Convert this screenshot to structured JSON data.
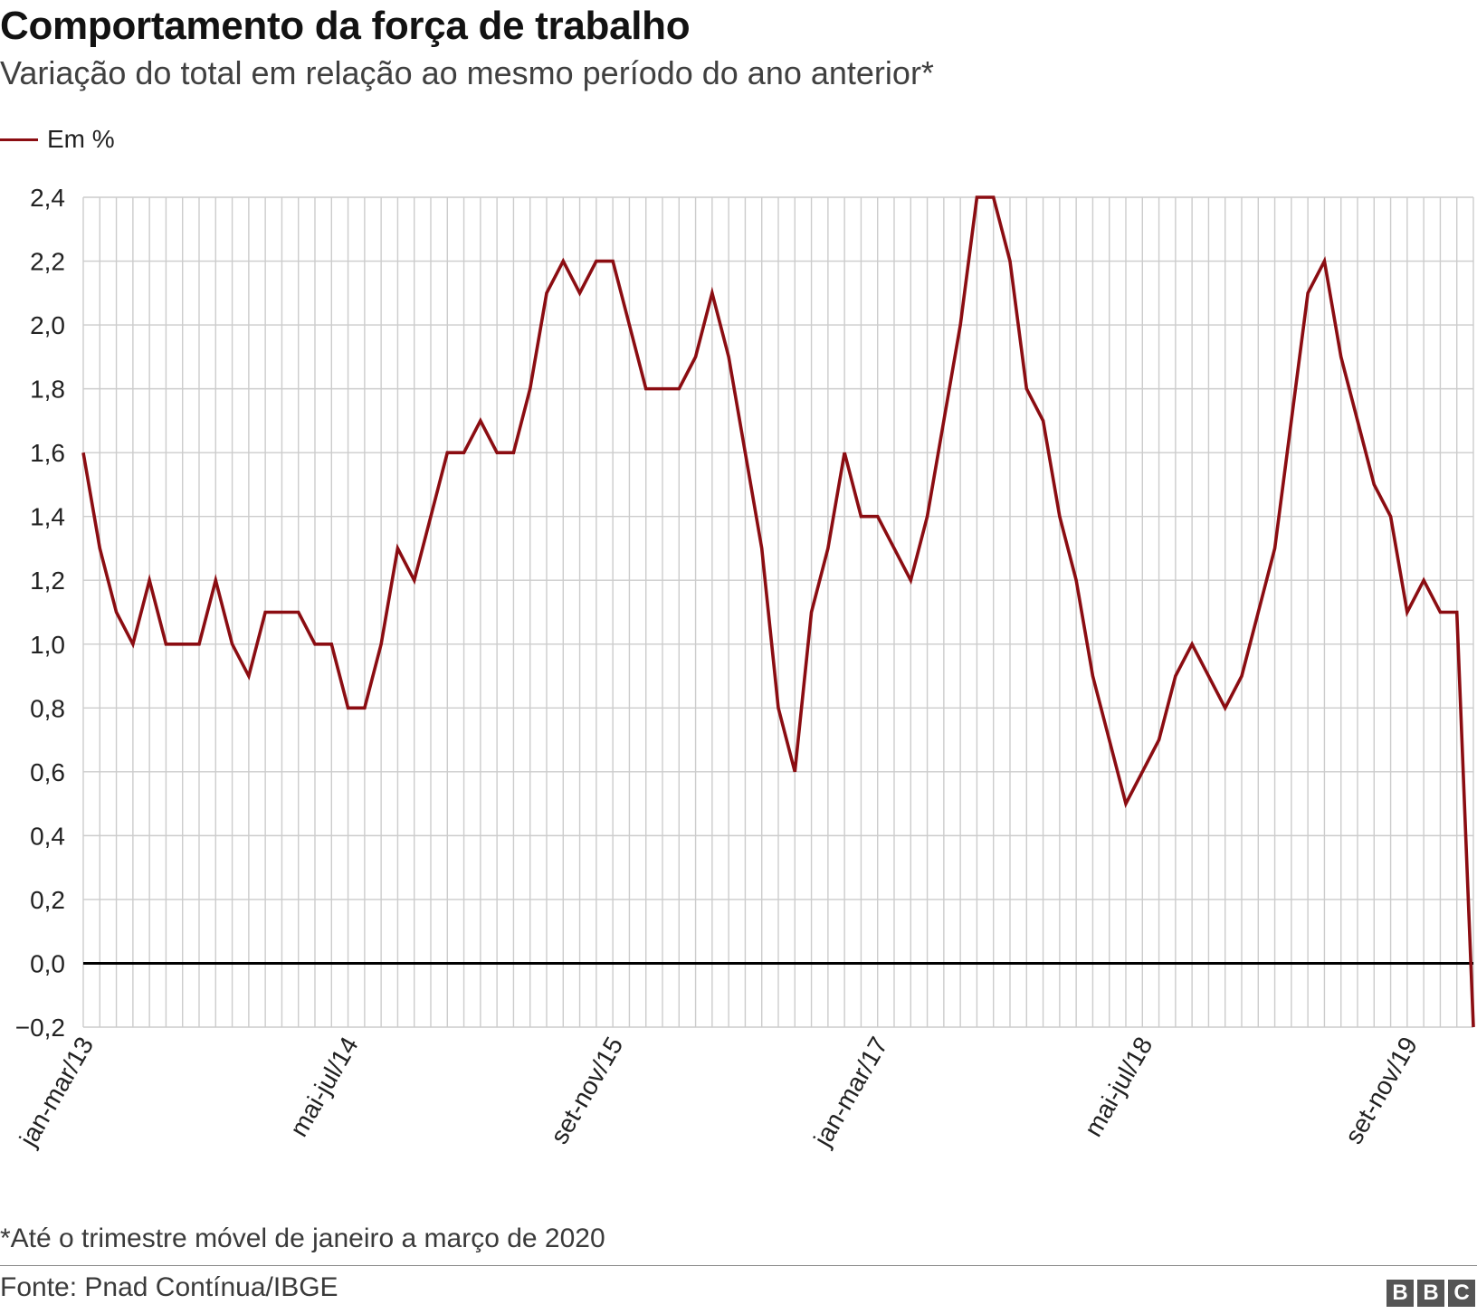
{
  "header": {
    "title": "Comportamento da força de trabalho",
    "subtitle": "Variação do total em relação ao mesmo período do ano anterior*"
  },
  "legend": {
    "label": "Em %"
  },
  "footer": {
    "note": "*Até o trimestre móvel de janeiro a março de 2020",
    "source": "Fonte: Pnad Contínua/IBGE",
    "logo_letters": [
      "B",
      "B",
      "C"
    ]
  },
  "colors": {
    "series": "#8b0d12",
    "grid": "#cccccc",
    "zero_line": "#000000"
  },
  "chart_data": {
    "type": "line",
    "title": "Comportamento da força de trabalho",
    "subtitle": "Variação do total em relação ao mesmo período do ano anterior*",
    "xlabel": "",
    "ylabel": "",
    "ylim": [
      -0.2,
      2.4
    ],
    "yticks": [
      -0.2,
      0.0,
      0.2,
      0.4,
      0.6,
      0.8,
      1.0,
      1.2,
      1.4,
      1.6,
      1.8,
      2.0,
      2.2,
      2.4
    ],
    "ytick_labels": [
      "−0,2",
      "0,0",
      "0,2",
      "0,4",
      "0,6",
      "0,8",
      "1,0",
      "1,2",
      "1,4",
      "1,6",
      "1,8",
      "2,0",
      "2,2",
      "2,4"
    ],
    "grid": true,
    "legend_position": "top-left",
    "x_tick_labels": [
      {
        "index": 0,
        "label": "jan-mar/13"
      },
      {
        "index": 16,
        "label": "mai-jul/14"
      },
      {
        "index": 32,
        "label": "set-nov/15"
      },
      {
        "index": 48,
        "label": "jan-mar/17"
      },
      {
        "index": 64,
        "label": "mai-jul/18"
      },
      {
        "index": 80,
        "label": "set-nov/19"
      }
    ],
    "series": [
      {
        "name": "Em %",
        "values": [
          1.6,
          1.3,
          1.1,
          1.0,
          1.2,
          1.0,
          1.0,
          1.0,
          1.2,
          1.0,
          0.9,
          1.1,
          1.1,
          1.1,
          1.0,
          1.0,
          0.8,
          0.8,
          1.0,
          1.3,
          1.2,
          1.4,
          1.6,
          1.6,
          1.7,
          1.6,
          1.6,
          1.8,
          2.1,
          2.2,
          2.1,
          2.2,
          2.2,
          2.0,
          1.8,
          1.8,
          1.8,
          1.9,
          2.1,
          1.9,
          1.6,
          1.3,
          0.8,
          0.6,
          1.1,
          1.3,
          1.6,
          1.4,
          1.4,
          1.3,
          1.2,
          1.4,
          1.7,
          2.0,
          2.4,
          2.4,
          2.2,
          1.8,
          1.7,
          1.4,
          1.2,
          0.9,
          0.7,
          0.5,
          0.6,
          0.7,
          0.9,
          1.0,
          0.9,
          0.8,
          0.9,
          1.1,
          1.3,
          1.7,
          2.1,
          2.2,
          1.9,
          1.7,
          1.5,
          1.4,
          1.1,
          1.2,
          1.1,
          1.1,
          -0.2
        ]
      }
    ]
  }
}
